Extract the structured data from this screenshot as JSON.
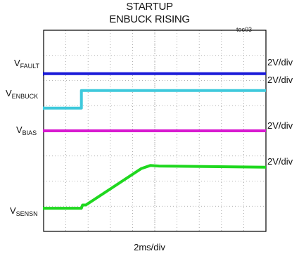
{
  "chart_data": {
    "type": "line",
    "title": "STARTUP",
    "subtitle": "ENBUCK RISING",
    "figure_id": "toc03",
    "xlabel": "2ms/div",
    "grid": true,
    "divisions": {
      "x": 10,
      "y": 8
    },
    "x_unit": "div",
    "series": [
      {
        "name": "FAULT",
        "label_main": "V",
        "label_sub": "FAULT",
        "scale": "2V/div",
        "color": "#1a1ad8",
        "points": [
          [
            0,
            6.27
          ],
          [
            10,
            6.27
          ]
        ]
      },
      {
        "name": "ENBUCK",
        "label_main": "V",
        "label_sub": "ENBUCK",
        "scale": "2V/div",
        "color": "#3ec9dc",
        "points": [
          [
            0,
            4.9
          ],
          [
            1.7,
            4.9
          ],
          [
            1.7,
            5.6
          ],
          [
            10,
            5.6
          ]
        ]
      },
      {
        "name": "BIAS",
        "label_main": "V",
        "label_sub": "BIAS",
        "scale": "2V/div",
        "color": "#d81ad0",
        "points": [
          [
            0,
            4.0
          ],
          [
            10,
            4.0
          ]
        ]
      },
      {
        "name": "SENSN",
        "label_main": "V",
        "label_sub": "SENSN",
        "scale": "2V/div",
        "color": "#1fd81f",
        "points": [
          [
            0,
            0.92
          ],
          [
            1.7,
            0.92
          ],
          [
            1.75,
            1.05
          ],
          [
            1.9,
            1.05
          ],
          [
            4.4,
            2.5
          ],
          [
            4.8,
            2.62
          ],
          [
            5.2,
            2.6
          ],
          [
            10,
            2.55
          ]
        ]
      }
    ]
  }
}
